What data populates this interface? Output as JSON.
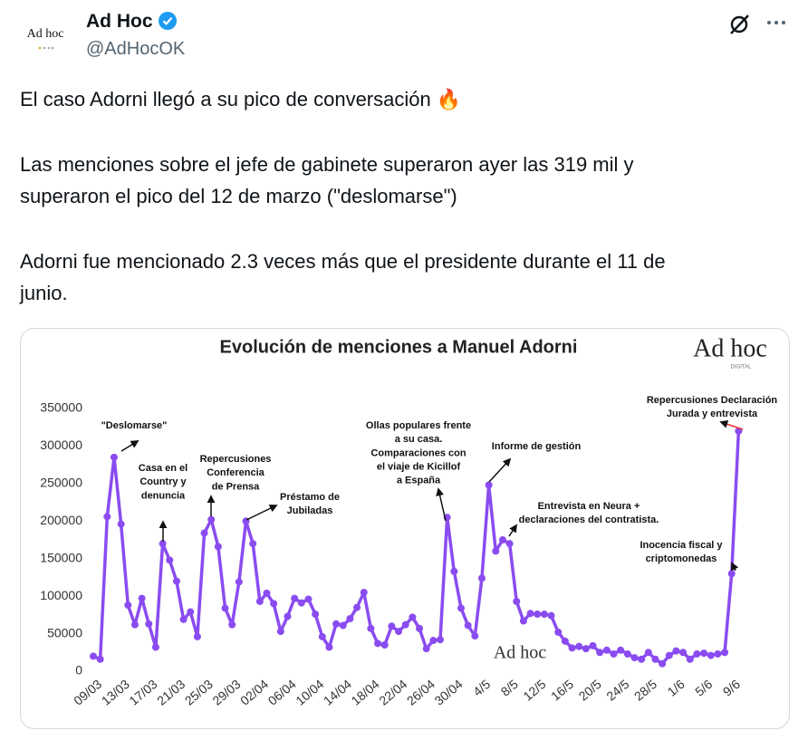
{
  "tweet": {
    "avatar_text": "Ad hoc",
    "name": "Ad Hoc",
    "handle": "@AdHocOK",
    "paragraphs": [
      [
        "El caso Adorni llegó a su pico de conversación 🔥"
      ],
      [
        "Las menciones sobre el jefe de gabinete superaron ayer las 319 mil y",
        "superaron el pico del 12 de marzo (\"deslomarse\")"
      ],
      [
        "Adorni fue mencionado 2.3 veces más que el presidente durante el 11 de",
        "junio."
      ]
    ]
  },
  "chart_data": {
    "type": "line",
    "title": "Evolución de menciones a Manuel Adorni",
    "logo": "Ad hoc",
    "logo_sub": "DIGITAL",
    "color": "#8a4cf0",
    "categories": [
      "09/03",
      null,
      null,
      null,
      "13/03",
      null,
      null,
      null,
      "17/03",
      null,
      null,
      null,
      "21/03",
      null,
      null,
      null,
      "25/03",
      null,
      null,
      null,
      "29/03",
      null,
      null,
      null,
      "02/04",
      null,
      null,
      null,
      "06/04",
      null,
      null,
      null,
      "10/04",
      null,
      null,
      null,
      "14/04",
      null,
      null,
      null,
      "18/04",
      null,
      null,
      null,
      "22/04",
      null,
      null,
      null,
      "26/04",
      null,
      null,
      null,
      "30/04",
      null,
      null,
      null,
      "4/5",
      null,
      null,
      null,
      "8/5",
      null,
      null,
      null,
      "12/5",
      null,
      null,
      null,
      "16/5",
      null,
      null,
      null,
      "20/5",
      null,
      null,
      null,
      "24/5",
      null,
      null,
      null,
      "28/5",
      null,
      null,
      null,
      "1/6",
      null,
      null,
      null,
      "5/6",
      null,
      null,
      null,
      "9/6",
      null
    ],
    "values": [
      20000,
      16000,
      206000,
      285000,
      196000,
      88000,
      62000,
      97000,
      63000,
      32000,
      170000,
      148000,
      120000,
      69000,
      79000,
      46000,
      184000,
      202000,
      166000,
      84000,
      62000,
      119000,
      200000,
      170000,
      93000,
      104000,
      90000,
      53000,
      73000,
      97000,
      91000,
      96000,
      76000,
      46000,
      32000,
      63000,
      61000,
      70000,
      85000,
      105000,
      57000,
      37000,
      35000,
      60000,
      53000,
      62000,
      72000,
      57000,
      30000,
      41000,
      42000,
      205000,
      133000,
      84000,
      61000,
      47000,
      124000,
      248000,
      160000,
      175000,
      170000,
      93000,
      67000,
      77000,
      76000,
      76000,
      74000,
      52000,
      40000,
      31000,
      33000,
      30000,
      34000,
      25000,
      28000,
      23000,
      28000,
      23000,
      18000,
      16000,
      25000,
      16000,
      10000,
      21000,
      27000,
      25000,
      16000,
      23000,
      24000,
      21000,
      23000,
      25000,
      130000,
      320000
    ],
    "ylim": [
      0,
      350000
    ],
    "yticks": [
      0,
      50000,
      100000,
      150000,
      200000,
      250000,
      300000,
      350000
    ],
    "grid": false,
    "annotations": [
      [
        "\"Deslomarse\""
      ],
      [
        "Casa en el",
        "Country y",
        "denuncia"
      ],
      [
        "Repercusiones",
        "Conferencia",
        "de Prensa"
      ],
      [
        "Préstamo de",
        "Jubiladas"
      ],
      [
        "Ollas populares frente",
        "a su casa.",
        "Comparaciones con",
        "el viaje de Kicillof",
        "a España"
      ],
      [
        "Informe de gestión"
      ],
      [
        "Entrevista en Neura +",
        "declaraciones del contratista."
      ],
      [
        "Inocencia fiscal y",
        "criptomonedas"
      ],
      [
        "Repercusiones Declaración",
        "Jurada y entrevista"
      ]
    ]
  }
}
